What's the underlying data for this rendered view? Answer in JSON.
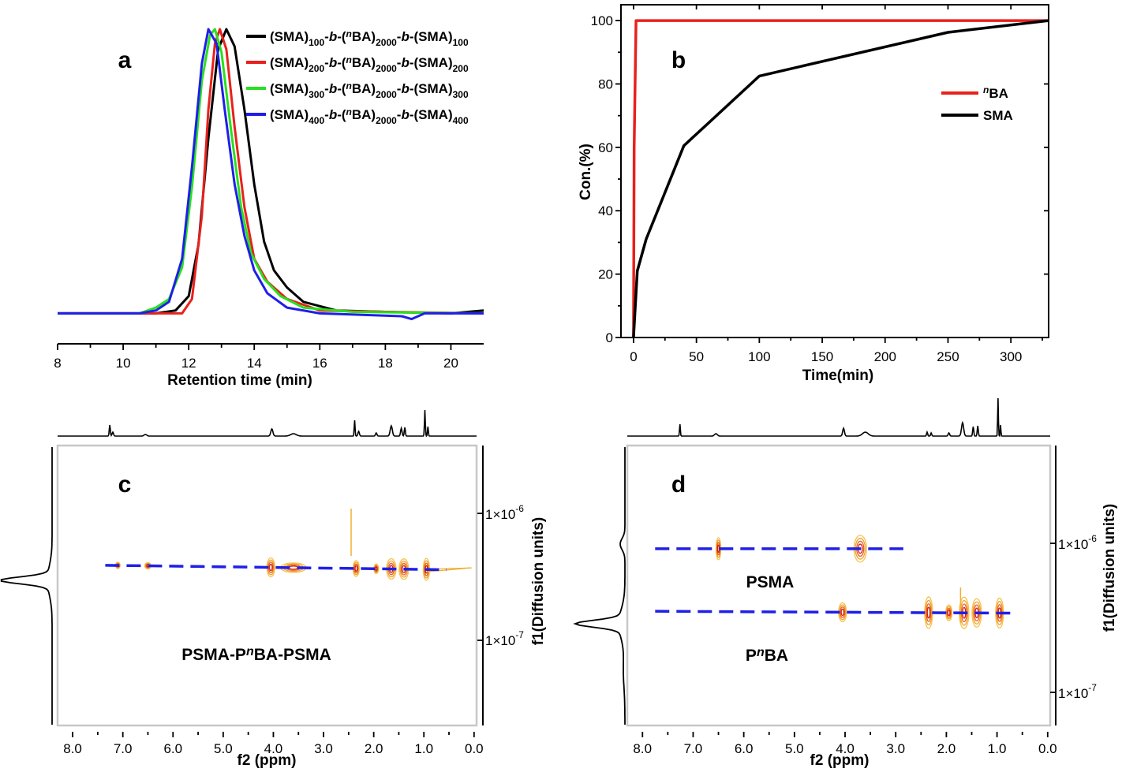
{
  "chart_data": [
    {
      "panel": "a",
      "type": "line",
      "xlabel": "Retention time (min)",
      "ylabel": "",
      "xlim": [
        8,
        21
      ],
      "xticks": [
        8,
        10,
        12,
        14,
        16,
        18,
        20
      ],
      "series": [
        {
          "name": "(SMA)100-b-(nBA)2000-b-(SMA)100",
          "legend": {
            "a": "(SMA)",
            "s1": "100",
            "b": "-b-(",
            "n": "n",
            "c": "BA)",
            "s2": "2000",
            "d": "-b-(SMA)",
            "s3": "100"
          },
          "color": "#000000",
          "points": [
            [
              8,
              0.01
            ],
            [
              10,
              0.01
            ],
            [
              11,
              0.01
            ],
            [
              11.6,
              0.02
            ],
            [
              12,
              0.07
            ],
            [
              12.3,
              0.25
            ],
            [
              12.6,
              0.62
            ],
            [
              12.9,
              0.93
            ],
            [
              13.15,
              1.0
            ],
            [
              13.4,
              0.94
            ],
            [
              13.7,
              0.72
            ],
            [
              14.0,
              0.46
            ],
            [
              14.3,
              0.26
            ],
            [
              14.6,
              0.16
            ],
            [
              15.0,
              0.1
            ],
            [
              15.5,
              0.05
            ],
            [
              16.5,
              0.02
            ],
            [
              18,
              0.015
            ],
            [
              20,
              0.01
            ],
            [
              21,
              0.02
            ]
          ]
        },
        {
          "name": "(SMA)200-b-(nBA)2000-b-(SMA)200",
          "legend": {
            "a": "(SMA)",
            "s1": "200",
            "b": "-b-(",
            "n": "n",
            "c": "BA)",
            "s2": "2000",
            "d": "-b-(SMA)",
            "s3": "200"
          },
          "color": "#e8211c",
          "points": [
            [
              8,
              0.01
            ],
            [
              11,
              0.01
            ],
            [
              11.8,
              0.01
            ],
            [
              12.1,
              0.06
            ],
            [
              12.4,
              0.35
            ],
            [
              12.6,
              0.72
            ],
            [
              12.8,
              0.95
            ],
            [
              12.95,
              1.0
            ],
            [
              13.15,
              0.93
            ],
            [
              13.4,
              0.66
            ],
            [
              13.7,
              0.38
            ],
            [
              14.0,
              0.2
            ],
            [
              14.4,
              0.12
            ],
            [
              15.0,
              0.06
            ],
            [
              16,
              0.02
            ],
            [
              18,
              0.015
            ],
            [
              21,
              0.01
            ]
          ]
        },
        {
          "name": "(SMA)300-b-(nBA)2000-b-(SMA)300",
          "legend": {
            "a": "(SMA)",
            "s1": "300",
            "b": "-b-(",
            "n": "n",
            "c": "BA)",
            "s2": "2000",
            "d": "-b-(SMA)",
            "s3": "300"
          },
          "color": "#28e01f",
          "points": [
            [
              8,
              0.01
            ],
            [
              10.5,
              0.01
            ],
            [
              11.0,
              0.03
            ],
            [
              11.4,
              0.06
            ],
            [
              11.8,
              0.17
            ],
            [
              12.1,
              0.45
            ],
            [
              12.4,
              0.82
            ],
            [
              12.65,
              0.98
            ],
            [
              12.8,
              1.0
            ],
            [
              13.0,
              0.92
            ],
            [
              13.3,
              0.64
            ],
            [
              13.6,
              0.38
            ],
            [
              13.9,
              0.22
            ],
            [
              14.3,
              0.13
            ],
            [
              14.8,
              0.07
            ],
            [
              15.5,
              0.03
            ],
            [
              17,
              0.015
            ],
            [
              21,
              0.01
            ]
          ]
        },
        {
          "name": "(SMA)400-b-(nBA)2000-b-(SMA)400",
          "legend": {
            "a": "(SMA)",
            "s1": "400",
            "b": "-b-(",
            "n": "n",
            "c": "BA)",
            "s2": "2000",
            "d": "-b-(SMA)",
            "s3": "400"
          },
          "color": "#1f1fe8",
          "points": [
            [
              8,
              0.01
            ],
            [
              10.5,
              0.01
            ],
            [
              11.0,
              0.02
            ],
            [
              11.4,
              0.05
            ],
            [
              11.8,
              0.2
            ],
            [
              12.1,
              0.52
            ],
            [
              12.4,
              0.88
            ],
            [
              12.6,
              1.0
            ],
            [
              12.85,
              0.95
            ],
            [
              13.1,
              0.72
            ],
            [
              13.4,
              0.46
            ],
            [
              13.7,
              0.28
            ],
            [
              14.0,
              0.16
            ],
            [
              14.4,
              0.08
            ],
            [
              15.0,
              0.03
            ],
            [
              16,
              0.01
            ],
            [
              18.5,
              0.0
            ],
            [
              18.8,
              -0.01
            ],
            [
              19.2,
              0.01
            ],
            [
              21,
              0.01
            ]
          ]
        }
      ]
    },
    {
      "panel": "b",
      "type": "line",
      "xlabel": "Time(min)",
      "ylabel": "Con.(%)",
      "xlim": [
        -10,
        330
      ],
      "ylim": [
        0,
        105
      ],
      "xticks": [
        0,
        50,
        100,
        150,
        200,
        250,
        300
      ],
      "yticks": [
        0,
        20,
        40,
        60,
        80,
        100
      ],
      "series": [
        {
          "name": "BA",
          "prefix": "n",
          "color": "#e8211c",
          "x": [
            0,
            0.5,
            2,
            330
          ],
          "y": [
            0,
            60,
            100,
            100
          ]
        },
        {
          "name": "SMA",
          "color": "#000000",
          "x": [
            0,
            3,
            10,
            40,
            100,
            250,
            330
          ],
          "y": [
            0,
            21,
            31,
            60.5,
            82.5,
            96.3,
            100
          ]
        }
      ]
    },
    {
      "panel": "c",
      "type": "scatter",
      "subtype": "DOSY contour",
      "xlabel": "f2 (ppm)",
      "ylabel": "f1(Diffusion units)",
      "xlim": [
        8.3,
        -0.05
      ],
      "xticks": [
        8.0,
        7.0,
        6.0,
        5.0,
        4.0,
        3.0,
        2.0,
        1.0,
        0.0
      ],
      "ytick_labels": [
        {
          "value": 1e-06,
          "label": "1×10",
          "exp": "-6"
        },
        {
          "value": 1e-07,
          "label": "1×10",
          "exp": "-7"
        }
      ],
      "annotation": {
        "pre": "PSMA-P",
        "n": "n",
        "post": "BA-PSMA"
      },
      "trend_line": {
        "x": [
          7.35,
          0.55
        ],
        "D": [
          3.9e-07,
          3.6e-07
        ]
      },
      "peaks_ppm": [
        7.1,
        6.5,
        4.05,
        3.6,
        2.35,
        1.95,
        1.65,
        1.4,
        0.95
      ]
    },
    {
      "panel": "d",
      "type": "scatter",
      "subtype": "DOSY contour",
      "xlabel": "f2 (ppm)",
      "ylabel": "f1(Diffusion units)",
      "xlim": [
        8.3,
        -0.05
      ],
      "xticks": [
        8.0,
        7.0,
        6.0,
        5.0,
        4.0,
        3.0,
        2.0,
        1.0,
        0.0
      ],
      "ytick_labels": [
        {
          "value": 1e-06,
          "label": "1×10",
          "exp": "-6"
        },
        {
          "value": 1e-07,
          "label": "1×10",
          "exp": "-7"
        }
      ],
      "annotations": [
        {
          "text": "PSMA"
        },
        {
          "pre": "P",
          "n": "n",
          "post": "BA"
        }
      ],
      "trend_lines": [
        {
          "name": "PSMA",
          "x": [
            7.75,
            2.85
          ],
          "D": [
            9.2e-07,
            9.2e-07
          ]
        },
        {
          "name": "PnBA",
          "x": [
            7.75,
            0.6
          ],
          "D": [
            3.5e-07,
            3.4e-07
          ]
        }
      ],
      "peaks_ppm_psma": [
        6.5,
        3.7
      ],
      "peaks_ppm_pnba": [
        4.05,
        2.35,
        1.95,
        1.65,
        1.4,
        0.95
      ]
    }
  ]
}
